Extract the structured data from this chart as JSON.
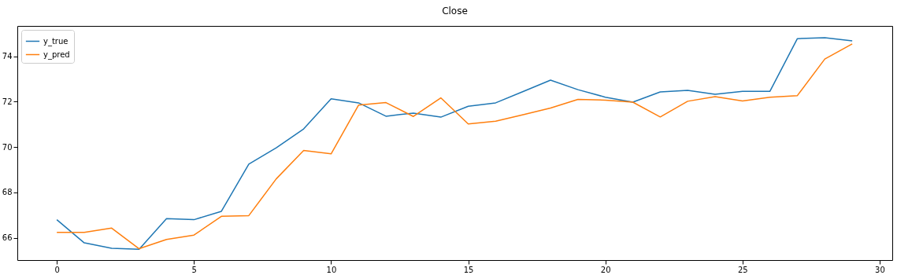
{
  "chart_data": {
    "type": "line",
    "title": "Close",
    "x": [
      0,
      1,
      2,
      3,
      4,
      5,
      6,
      7,
      8,
      9,
      10,
      11,
      12,
      13,
      14,
      15,
      16,
      17,
      18,
      19,
      20,
      21,
      22,
      23,
      24,
      25,
      26,
      27,
      28,
      29
    ],
    "series": [
      {
        "name": "y_true",
        "color": "#1f77b4",
        "values": [
          66.8,
          65.78,
          65.54,
          65.5,
          66.85,
          66.8,
          67.17,
          69.25,
          69.97,
          70.8,
          72.13,
          71.95,
          71.36,
          71.5,
          71.32,
          71.8,
          71.95,
          72.45,
          72.95,
          72.53,
          72.2,
          71.98,
          72.43,
          72.5,
          72.33,
          72.46,
          72.46,
          74.78,
          74.82,
          74.68
        ]
      },
      {
        "name": "y_pred",
        "color": "#ff7f0e",
        "values": [
          66.24,
          66.24,
          66.43,
          65.52,
          65.93,
          66.12,
          66.95,
          66.98,
          68.6,
          69.85,
          69.7,
          71.85,
          71.96,
          71.35,
          72.17,
          71.02,
          71.14,
          71.43,
          71.72,
          72.1,
          72.07,
          71.98,
          71.33,
          72.02,
          72.22,
          72.03,
          72.2,
          72.27,
          73.88,
          74.55
        ]
      }
    ],
    "xlim": [
      -1.44,
      30.46
    ],
    "xticks": [
      0,
      5,
      10,
      15,
      20,
      25,
      30
    ],
    "ylim": [
      65.02,
      75.34
    ],
    "yticks": [
      66,
      68,
      70,
      72,
      74
    ],
    "grid": false,
    "legend": "top left",
    "marker": "none",
    "line_style": "solid"
  }
}
